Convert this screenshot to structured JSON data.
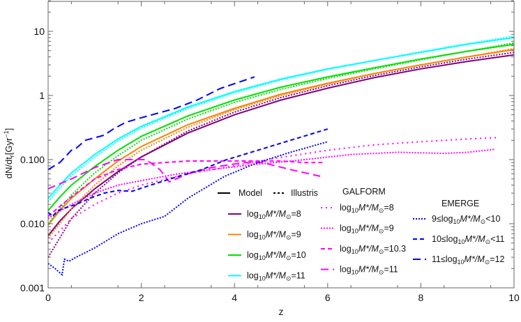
{
  "chart_data": {
    "type": "line",
    "xlabel": "z",
    "ylabel": {
      "main": "dN/dt",
      "sub": "r",
      "unit_open": "[Gyr",
      "sup": "−1",
      "unit_close": "]"
    },
    "xlim": [
      0,
      10
    ],
    "ylim": [
      0.001,
      30
    ],
    "yscale": "log",
    "grid": false,
    "xticks": [
      "0",
      "2",
      "4",
      "6",
      "8",
      "10"
    ],
    "yticks": [
      {
        "v": 10,
        "label": "10"
      },
      {
        "v": 1,
        "label": "1"
      },
      {
        "v": 0.1,
        "label": "0.100"
      },
      {
        "v": 0.01,
        "label": "0.010"
      },
      {
        "v": 0.001,
        "label": "0.001"
      }
    ],
    "series": [
      {
        "group": "model",
        "color": "#800080",
        "style": "solid",
        "x": [
          0,
          0.25,
          0.5,
          1,
          1.5,
          2,
          3,
          4,
          5,
          6,
          7,
          8,
          9,
          10
        ],
        "y": [
          0.0065,
          0.011,
          0.017,
          0.035,
          0.065,
          0.11,
          0.26,
          0.5,
          0.85,
          1.3,
          1.9,
          2.6,
          3.4,
          4.3
        ]
      },
      {
        "group": "model",
        "color": "#ff8000",
        "style": "solid",
        "x": [
          0,
          0.25,
          0.5,
          1,
          1.5,
          2,
          3,
          4,
          5,
          6,
          7,
          8,
          9,
          10
        ],
        "y": [
          0.0095,
          0.016,
          0.025,
          0.05,
          0.095,
          0.16,
          0.35,
          0.63,
          1.05,
          1.55,
          2.2,
          3.0,
          4.0,
          5.2
        ]
      },
      {
        "group": "model",
        "color": "#00e000",
        "style": "solid",
        "x": [
          0,
          0.25,
          0.5,
          1,
          1.5,
          2,
          3,
          4,
          5,
          6,
          7,
          8,
          9,
          10
        ],
        "y": [
          0.016,
          0.026,
          0.04,
          0.078,
          0.14,
          0.23,
          0.48,
          0.85,
          1.35,
          1.95,
          2.7,
          3.7,
          4.9,
          6.3
        ]
      },
      {
        "group": "model",
        "color": "#00ffff",
        "style": "solid",
        "x": [
          0,
          0.25,
          0.5,
          1,
          1.5,
          2,
          3,
          4,
          5,
          6,
          7,
          8,
          9,
          10
        ],
        "y": [
          0.025,
          0.04,
          0.062,
          0.12,
          0.21,
          0.33,
          0.66,
          1.15,
          1.8,
          2.6,
          3.5,
          4.7,
          6.3,
          8.0
        ]
      },
      {
        "group": "illustris",
        "color": "#800080",
        "style": "dotted",
        "x": [
          0,
          0.25,
          0.5,
          1,
          1.5,
          2,
          3,
          4,
          5,
          6,
          7,
          8,
          9,
          10
        ],
        "y": [
          0.003,
          0.006,
          0.012,
          0.03,
          0.062,
          0.11,
          0.28,
          0.55,
          0.93,
          1.42,
          2.05,
          2.8,
          3.7,
          4.7
        ]
      },
      {
        "group": "illustris",
        "color": "#ff8000",
        "style": "dotted",
        "x": [
          0,
          0.25,
          0.5,
          1,
          1.5,
          2,
          3,
          4,
          5,
          6,
          7,
          8,
          9,
          10
        ],
        "y": [
          0.006,
          0.01,
          0.017,
          0.04,
          0.08,
          0.14,
          0.32,
          0.6,
          1.0,
          1.5,
          2.2,
          3.0,
          4.0,
          5.4
        ]
      },
      {
        "group": "illustris",
        "color": "#00e000",
        "style": "dotted",
        "x": [
          0,
          0.25,
          0.5,
          1,
          1.5,
          2,
          3,
          4,
          5,
          6,
          7,
          8,
          9,
          10
        ],
        "y": [
          0.01,
          0.017,
          0.028,
          0.062,
          0.115,
          0.2,
          0.43,
          0.78,
          1.25,
          1.85,
          2.6,
          3.6,
          4.9,
          6.6
        ]
      },
      {
        "group": "illustris",
        "color": "#00ffff",
        "style": "dotted",
        "x": [
          0,
          0.25,
          0.5,
          1,
          1.5,
          2,
          3,
          4,
          5,
          6,
          7,
          8,
          9,
          10
        ],
        "y": [
          0.022,
          0.036,
          0.056,
          0.11,
          0.195,
          0.31,
          0.63,
          1.1,
          1.75,
          2.55,
          3.5,
          4.8,
          6.4,
          8.4
        ]
      },
      {
        "group": "galform",
        "color": "#ff00ff",
        "style": "sparse-dotted",
        "x": [
          0,
          0.5,
          1,
          1.5,
          2,
          3,
          4,
          4.87,
          6,
          7,
          8,
          9,
          9.63
        ],
        "y": [
          0.005,
          0.012,
          0.02,
          0.03,
          0.04,
          0.06,
          0.08,
          0.105,
          0.14,
          0.17,
          0.19,
          0.21,
          0.22
        ]
      },
      {
        "group": "galform",
        "color": "#ff00ff",
        "style": "dotted",
        "x": [
          0,
          0.2,
          0.5,
          1,
          1.5,
          2,
          2.73,
          3.5,
          4.5,
          5.4,
          6.5,
          7.5,
          8.5,
          9,
          9.6
        ],
        "y": [
          0.012,
          0.015,
          0.02,
          0.03,
          0.04,
          0.047,
          0.059,
          0.07,
          0.085,
          0.098,
          0.12,
          0.13,
          0.125,
          0.13,
          0.145
        ]
      },
      {
        "group": "galform",
        "color": "#ff00ff",
        "style": "dashed",
        "x": [
          0,
          0.3,
          0.6,
          1,
          1.5,
          2,
          2.5,
          3,
          4,
          5,
          5.5,
          5.9
        ],
        "y": [
          0.013,
          0.02,
          0.03,
          0.05,
          0.07,
          0.085,
          0.09,
          0.095,
          0.095,
          0.095,
          0.09,
          0.09
        ]
      },
      {
        "group": "galform",
        "color": "#ff00ff",
        "style": "long-dashed",
        "x": [
          0,
          0.5,
          1,
          1.5,
          2.1,
          2.4,
          2.6,
          3,
          3.5,
          4.2,
          4.6,
          5.2,
          5.84
        ],
        "y": [
          0.035,
          0.05,
          0.075,
          0.1,
          0.1,
          0.07,
          0.045,
          0.06,
          0.075,
          0.09,
          0.09,
          0.07,
          0.055
        ]
      },
      {
        "group": "emerge",
        "color": "#0000ff",
        "style": "dotted",
        "x": [
          0,
          0.15,
          0.3,
          0.35,
          0.45,
          0.6,
          1,
          1.5,
          2,
          2.5,
          3,
          3.79,
          4.5,
          5.2,
          6
        ],
        "y": [
          0.0024,
          0.002,
          0.0016,
          0.0028,
          0.0026,
          0.003,
          0.0042,
          0.007,
          0.01,
          0.013,
          0.025,
          0.055,
          0.09,
          0.13,
          0.19
        ]
      },
      {
        "group": "emerge",
        "color": "#0000ff",
        "style": "dashed",
        "x": [
          0,
          0.1,
          0.2,
          0.4,
          0.6,
          0.9,
          1.2,
          1.5,
          1.8,
          2.2,
          2.8,
          3.3,
          3.8,
          4.5,
          5.2,
          6
        ],
        "y": [
          0.015,
          0.013,
          0.016,
          0.018,
          0.02,
          0.025,
          0.03,
          0.033,
          0.032,
          0.04,
          0.055,
          0.07,
          0.098,
          0.14,
          0.2,
          0.3
        ]
      },
      {
        "group": "emerge",
        "color": "#0000ff",
        "style": "long-dashed",
        "x": [
          0,
          0.25,
          0.5,
          0.6,
          0.8,
          1.2,
          1.4,
          1.66,
          2,
          2.73,
          3.2,
          3.69,
          4.43
        ],
        "y": [
          0.07,
          0.09,
          0.14,
          0.15,
          0.2,
          0.24,
          0.3,
          0.38,
          0.45,
          0.63,
          0.85,
          1.28,
          1.95
        ]
      }
    ],
    "legend": {
      "placement": "bottom-right",
      "model_label": "Model",
      "illustris_label": "Illustris",
      "galform_title": "GALFORM",
      "emerge_title": "EMERGE",
      "expr": {
        "log": "log",
        "sub": "10",
        "m": "M",
        "star": "*",
        "slash": "/M",
        "sun": "⊙"
      },
      "model_entries": [
        {
          "color": "#800080",
          "style": "solid",
          "prefix": "",
          "suffix": "=8"
        },
        {
          "color": "#ff8000",
          "style": "solid",
          "prefix": "",
          "suffix": "=9"
        },
        {
          "color": "#00e000",
          "style": "solid",
          "prefix": "",
          "suffix": "=10"
        },
        {
          "color": "#00ffff",
          "style": "solid",
          "prefix": "",
          "suffix": "=11"
        }
      ],
      "galform_entries": [
        {
          "color": "#ff00ff",
          "style": "sparse-dotted",
          "prefix": "",
          "suffix": "=8"
        },
        {
          "color": "#ff00ff",
          "style": "dotted",
          "prefix": "",
          "suffix": "=9"
        },
        {
          "color": "#ff00ff",
          "style": "dashed",
          "prefix": "",
          "suffix": "=10.3"
        },
        {
          "color": "#ff00ff",
          "style": "long-dashed",
          "prefix": "",
          "suffix": "=11"
        }
      ],
      "emerge_entries": [
        {
          "color": "#0000ff",
          "style": "dotted",
          "prefix": "9≤",
          "suffix": "<10"
        },
        {
          "color": "#0000ff",
          "style": "dashed",
          "prefix": "10≤",
          "suffix": "<11"
        },
        {
          "color": "#0000ff",
          "style": "long-dashed",
          "prefix": "11≤",
          "suffix": "=12"
        }
      ]
    }
  }
}
